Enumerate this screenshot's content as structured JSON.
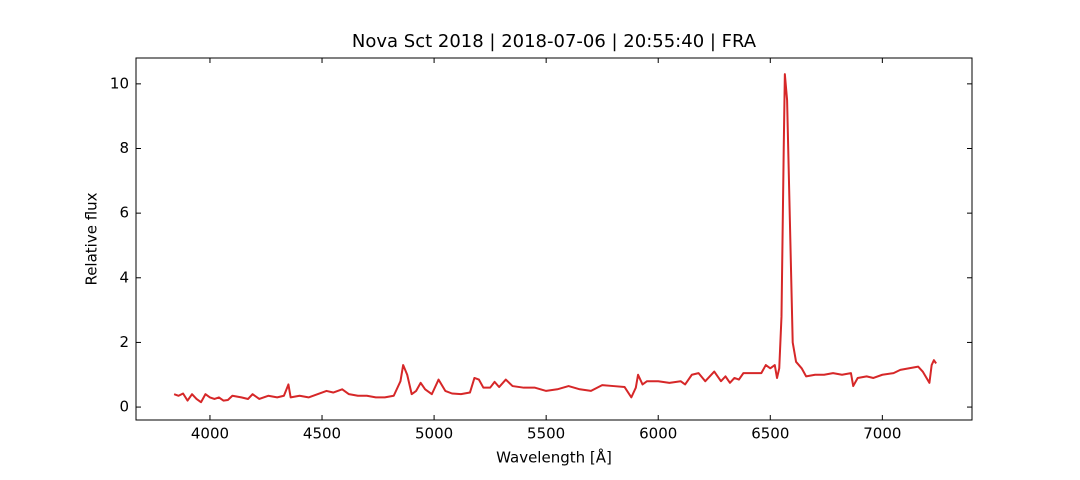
{
  "chart_data": {
    "type": "line",
    "title": "Nova Sct 2018 | 2018-07-06 | 20:55:40 | FRA",
    "x_label": "Wavelength [Å]",
    "y_label": "Relative flux",
    "color": "#d62728",
    "xlim": [
      3670,
      7400
    ],
    "ylim": [
      -0.4,
      10.8
    ],
    "xticks": [
      4000,
      4500,
      5000,
      5500,
      6000,
      6500,
      7000
    ],
    "yticks": [
      0,
      2,
      4,
      6,
      8,
      10
    ],
    "grid": false,
    "x": [
      3840,
      3860,
      3880,
      3900,
      3920,
      3940,
      3960,
      3980,
      4000,
      4020,
      4040,
      4060,
      4080,
      4100,
      4140,
      4170,
      4190,
      4220,
      4260,
      4300,
      4330,
      4350,
      4360,
      4400,
      4440,
      4480,
      4520,
      4550,
      4590,
      4620,
      4660,
      4700,
      4740,
      4780,
      4820,
      4850,
      4862,
      4880,
      4900,
      4920,
      4940,
      4960,
      4990,
      5020,
      5050,
      5080,
      5120,
      5160,
      5180,
      5200,
      5220,
      5250,
      5270,
      5290,
      5320,
      5350,
      5400,
      5450,
      5500,
      5550,
      5600,
      5650,
      5700,
      5750,
      5800,
      5850,
      5880,
      5900,
      5910,
      5930,
      5950,
      6000,
      6050,
      6100,
      6120,
      6150,
      6180,
      6210,
      6250,
      6280,
      6300,
      6320,
      6340,
      6360,
      6380,
      6420,
      6460,
      6480,
      6500,
      6520,
      6530,
      6540,
      6550,
      6560,
      6565,
      6575,
      6590,
      6600,
      6615,
      6640,
      6660,
      6700,
      6740,
      6780,
      6820,
      6860,
      6870,
      6890,
      6930,
      6960,
      7000,
      7050,
      7080,
      7120,
      7160,
      7180,
      7210,
      7220,
      7230,
      7240
    ],
    "values": [
      0.4,
      0.35,
      0.42,
      0.2,
      0.4,
      0.25,
      0.15,
      0.4,
      0.3,
      0.25,
      0.3,
      0.2,
      0.22,
      0.35,
      0.3,
      0.25,
      0.4,
      0.25,
      0.35,
      0.3,
      0.35,
      0.7,
      0.3,
      0.35,
      0.3,
      0.4,
      0.5,
      0.45,
      0.55,
      0.4,
      0.35,
      0.35,
      0.3,
      0.3,
      0.35,
      0.8,
      1.3,
      1.0,
      0.4,
      0.5,
      0.75,
      0.55,
      0.4,
      0.85,
      0.5,
      0.42,
      0.4,
      0.45,
      0.9,
      0.85,
      0.6,
      0.6,
      0.78,
      0.62,
      0.85,
      0.65,
      0.6,
      0.6,
      0.5,
      0.55,
      0.65,
      0.55,
      0.5,
      0.68,
      0.65,
      0.62,
      0.3,
      0.6,
      1.0,
      0.7,
      0.8,
      0.8,
      0.75,
      0.8,
      0.7,
      1.0,
      1.05,
      0.8,
      1.1,
      0.8,
      0.95,
      0.75,
      0.9,
      0.85,
      1.05,
      1.05,
      1.05,
      1.3,
      1.2,
      1.3,
      0.9,
      1.2,
      2.8,
      8.0,
      10.3,
      9.5,
      5.0,
      2.0,
      1.4,
      1.2,
      0.95,
      1.0,
      1.0,
      1.05,
      1.0,
      1.05,
      0.65,
      0.9,
      0.95,
      0.9,
      1.0,
      1.05,
      1.15,
      1.2,
      1.25,
      1.1,
      0.75,
      1.3,
      1.45,
      1.35
    ]
  }
}
